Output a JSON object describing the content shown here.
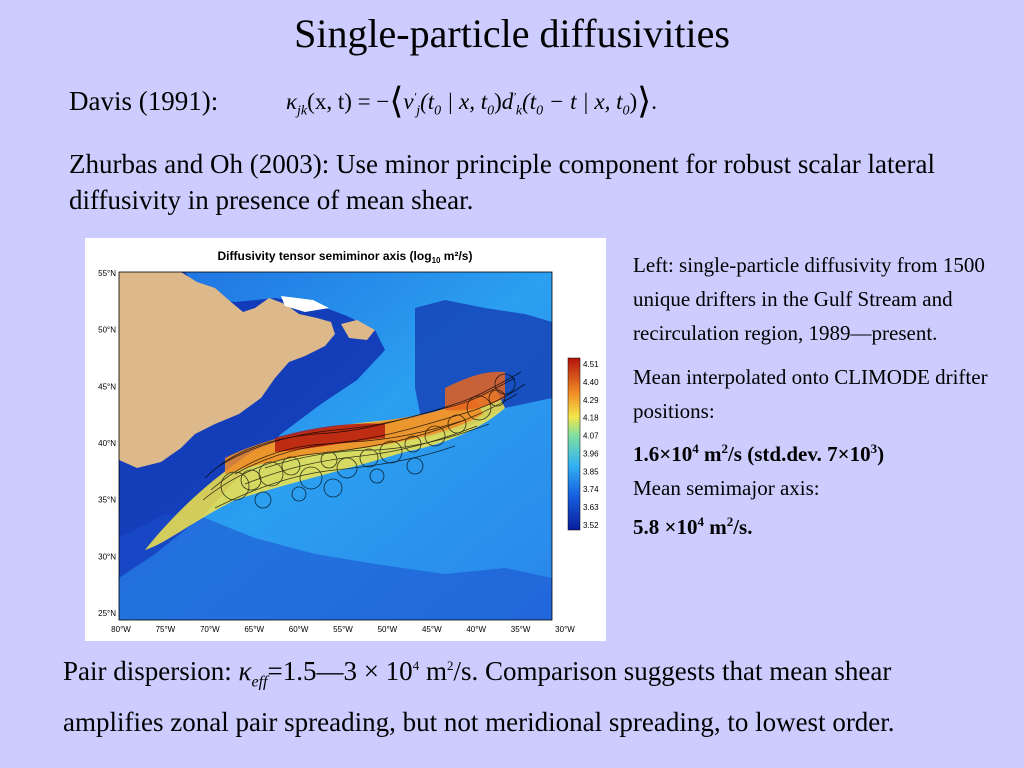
{
  "slide": {
    "title": "Single-particle diffusivities",
    "davis": {
      "label": "Davis (1991):",
      "formula": {
        "kappa": "κ",
        "kappa_sub": "jk",
        "lhs_args": "(x, t) = −",
        "v": "v",
        "v_sub": "j",
        "prime": "′",
        "v_args": "(t",
        "zero": "0",
        "mid1": " | x, t",
        "close1": ")",
        "d": "d",
        "d_sub": "k",
        "d_args": "(t",
        "mid2": " − t | x, t",
        "close2": ")",
        "langle": "⟨",
        "rangle": "⟩",
        "period": "."
      }
    },
    "zhurbas_text": "Zhurbas and Oh (2003):  Use minor principle component for robust scalar lateral diffusivity in presence of mean shear.",
    "figure": {
      "title_prefix": "Diffusivity tensor semiminor axis (log",
      "title_sub": "10",
      "title_suffix": " m²/s)",
      "lat_labels": [
        "55°N",
        "50°N",
        "45°N",
        "40°N",
        "35°N",
        "30°N",
        "25°N"
      ],
      "lon_labels": [
        "80°W",
        "75°W",
        "70°W",
        "65°W",
        "60°W",
        "55°W",
        "50°W",
        "45°W",
        "40°W",
        "35°W",
        "30°W"
      ],
      "colorbar_labels": [
        "4.51",
        "4.40",
        "4.29",
        "4.18",
        "4.07",
        "3.96",
        "3.85",
        "3.74",
        "3.63",
        "3.52"
      ],
      "colors": {
        "land": "#dcb88a",
        "ocean_low": "#0a1d9c",
        "ocean_mid": "#33b3f2",
        "ocean_high": "#f4e54a",
        "max": "#b3130d",
        "tracks": "#000000"
      }
    },
    "right_col": {
      "left_text": "Left: single-particle diffusivity from 1500 unique drifters in the Gulf Stream and recirculation region, 1989—present.",
      "mean_interp_text": "Mean interpolated onto CLIMODE drifter positions:",
      "value1_pre": "1.6×10",
      "value1_exp": "4",
      "value1_mid": " m",
      "value1_exp2": "2",
      "value1_mid2": "/s (std.dev. 7×10",
      "value1_exp3": "3",
      "value1_end": ")",
      "semimajor_label": "Mean semimajor axis:",
      "value2_pre": "5.8 ×10",
      "value2_exp": "4",
      "value2_mid": " m",
      "value2_exp2": "2",
      "value2_end": "/s."
    },
    "bottom": {
      "pre": "Pair dispersion: ",
      "kappa": "κ",
      "sub": "eff",
      "mid": "=1.5—3 × 10",
      "exp": "4",
      "mid2": " m",
      "exp2": "2",
      "post": "/s.  Comparison suggests that mean shear amplifies zonal  pair spreading, but not meridional spreading, to lowest order."
    }
  }
}
